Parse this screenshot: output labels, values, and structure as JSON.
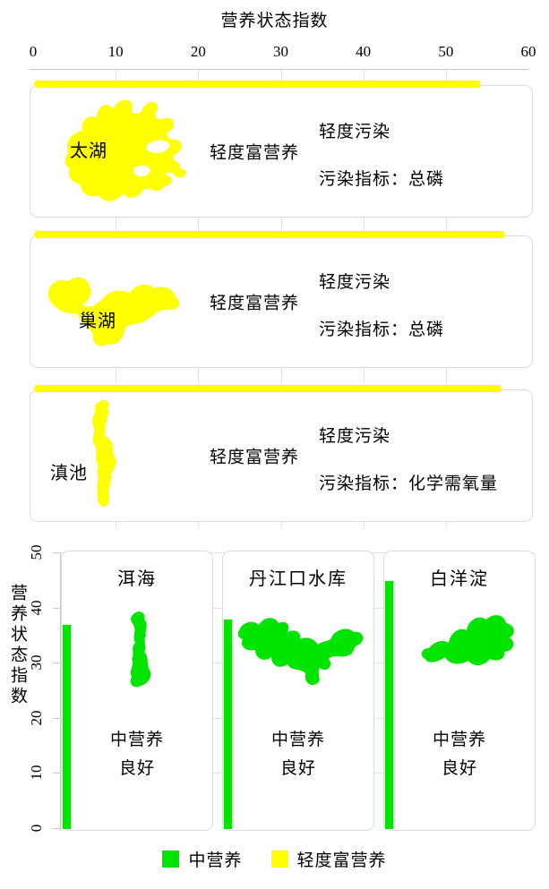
{
  "top_chart": {
    "title": "营养状态指数",
    "axis": {
      "min": 0,
      "max": 60,
      "ticks": [
        0,
        10,
        20,
        30,
        40,
        50,
        60
      ]
    },
    "lakes": [
      {
        "name": "太湖",
        "tsi": 54,
        "trophic_status": "轻度富营养",
        "pollution_level": "轻度污染",
        "pollution_indicator": "污染指标：总磷"
      },
      {
        "name": "巢湖",
        "tsi": 57,
        "trophic_status": "轻度富营养",
        "pollution_level": "轻度污染",
        "pollution_indicator": "污染指标：总磷"
      },
      {
        "name": "滇池",
        "tsi": 56.5,
        "trophic_status": "轻度富营养",
        "pollution_level": "轻度污染",
        "pollution_indicator": "污染指标：化学需氧量"
      }
    ]
  },
  "bottom_chart": {
    "ylabel": "营养状态指数",
    "axis": {
      "min": 0,
      "max": 50,
      "ticks": [
        0,
        10,
        20,
        30,
        40,
        50
      ]
    },
    "lakes": [
      {
        "name": "洱海",
        "tsi": 37,
        "trophic_status": "中营养",
        "water_quality": "良好"
      },
      {
        "name": "丹江口水库",
        "tsi": 38,
        "trophic_status": "中营养",
        "water_quality": "良好"
      },
      {
        "name": "白洋淀",
        "tsi": 45,
        "trophic_status": "中营养",
        "water_quality": "良好"
      }
    ]
  },
  "legend": {
    "items": [
      {
        "label": "中营养",
        "color": "#00E400"
      },
      {
        "label": "轻度富营养",
        "color": "#FFFF00"
      }
    ]
  },
  "colors": {
    "mesotrophic_green": "#00E400",
    "light_eutrophic_yellow": "#FFFF00",
    "panel_border": "#dbdbdb",
    "grid": "#e2e2e2",
    "axis": "#c8c8c8"
  },
  "chart_data": [
    {
      "type": "bar",
      "orientation": "horizontal",
      "title": "营养状态指数",
      "categories": [
        "太湖",
        "巢湖",
        "滇池"
      ],
      "values": [
        54,
        57,
        56.5
      ],
      "xlabel": "营养状态指数",
      "xlim": [
        0,
        60
      ],
      "x_ticks": [
        0,
        10,
        20,
        30,
        40,
        50,
        60
      ],
      "series_class": "轻度富营养",
      "bar_color": "#FFFF00",
      "grid": true,
      "annotations": [
        {
          "lake": "太湖",
          "trophic": "轻度富营养",
          "pollution": "轻度污染",
          "indicator": "总磷"
        },
        {
          "lake": "巢湖",
          "trophic": "轻度富营养",
          "pollution": "轻度污染",
          "indicator": "总磷"
        },
        {
          "lake": "滇池",
          "trophic": "轻度富营养",
          "pollution": "轻度污染",
          "indicator": "化学需氧量"
        }
      ]
    },
    {
      "type": "bar",
      "orientation": "vertical",
      "categories": [
        "洱海",
        "丹江口水库",
        "白洋淀"
      ],
      "values": [
        37,
        38,
        45
      ],
      "ylabel": "营养状态指数",
      "ylim": [
        0,
        50
      ],
      "y_ticks": [
        0,
        10,
        20,
        30,
        40,
        50
      ],
      "series_class": "中营养",
      "bar_color": "#00E400",
      "grid": true,
      "legend_position": "bottom",
      "legend": [
        "中营养",
        "轻度富营养"
      ],
      "annotations": [
        {
          "lake": "洱海",
          "trophic": "中营养",
          "quality": "良好"
        },
        {
          "lake": "丹江口水库",
          "trophic": "中营养",
          "quality": "良好"
        },
        {
          "lake": "白洋淀",
          "trophic": "中营养",
          "quality": "良好"
        }
      ]
    }
  ]
}
